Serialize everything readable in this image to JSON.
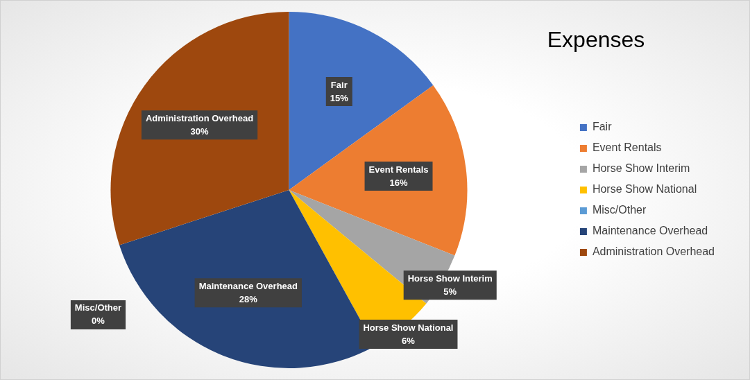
{
  "chart_data": {
    "type": "pie",
    "title": "Expenses",
    "categories": [
      "Fair",
      "Event Rentals",
      "Horse Show Interim",
      "Horse Show National",
      "Misc/Other",
      "Maintenance Overhead",
      "Administration Overhead"
    ],
    "values": [
      15,
      16,
      5,
      6,
      0,
      28,
      30
    ],
    "colors": [
      "#4472c4",
      "#ed7d31",
      "#a5a5a5",
      "#ffc000",
      "#5b9bd5",
      "#264478",
      "#9e480e"
    ],
    "value_labels": [
      "15%",
      "16%",
      "5%",
      "6%",
      "0%",
      "28%",
      "30%"
    ],
    "legend": "right"
  }
}
